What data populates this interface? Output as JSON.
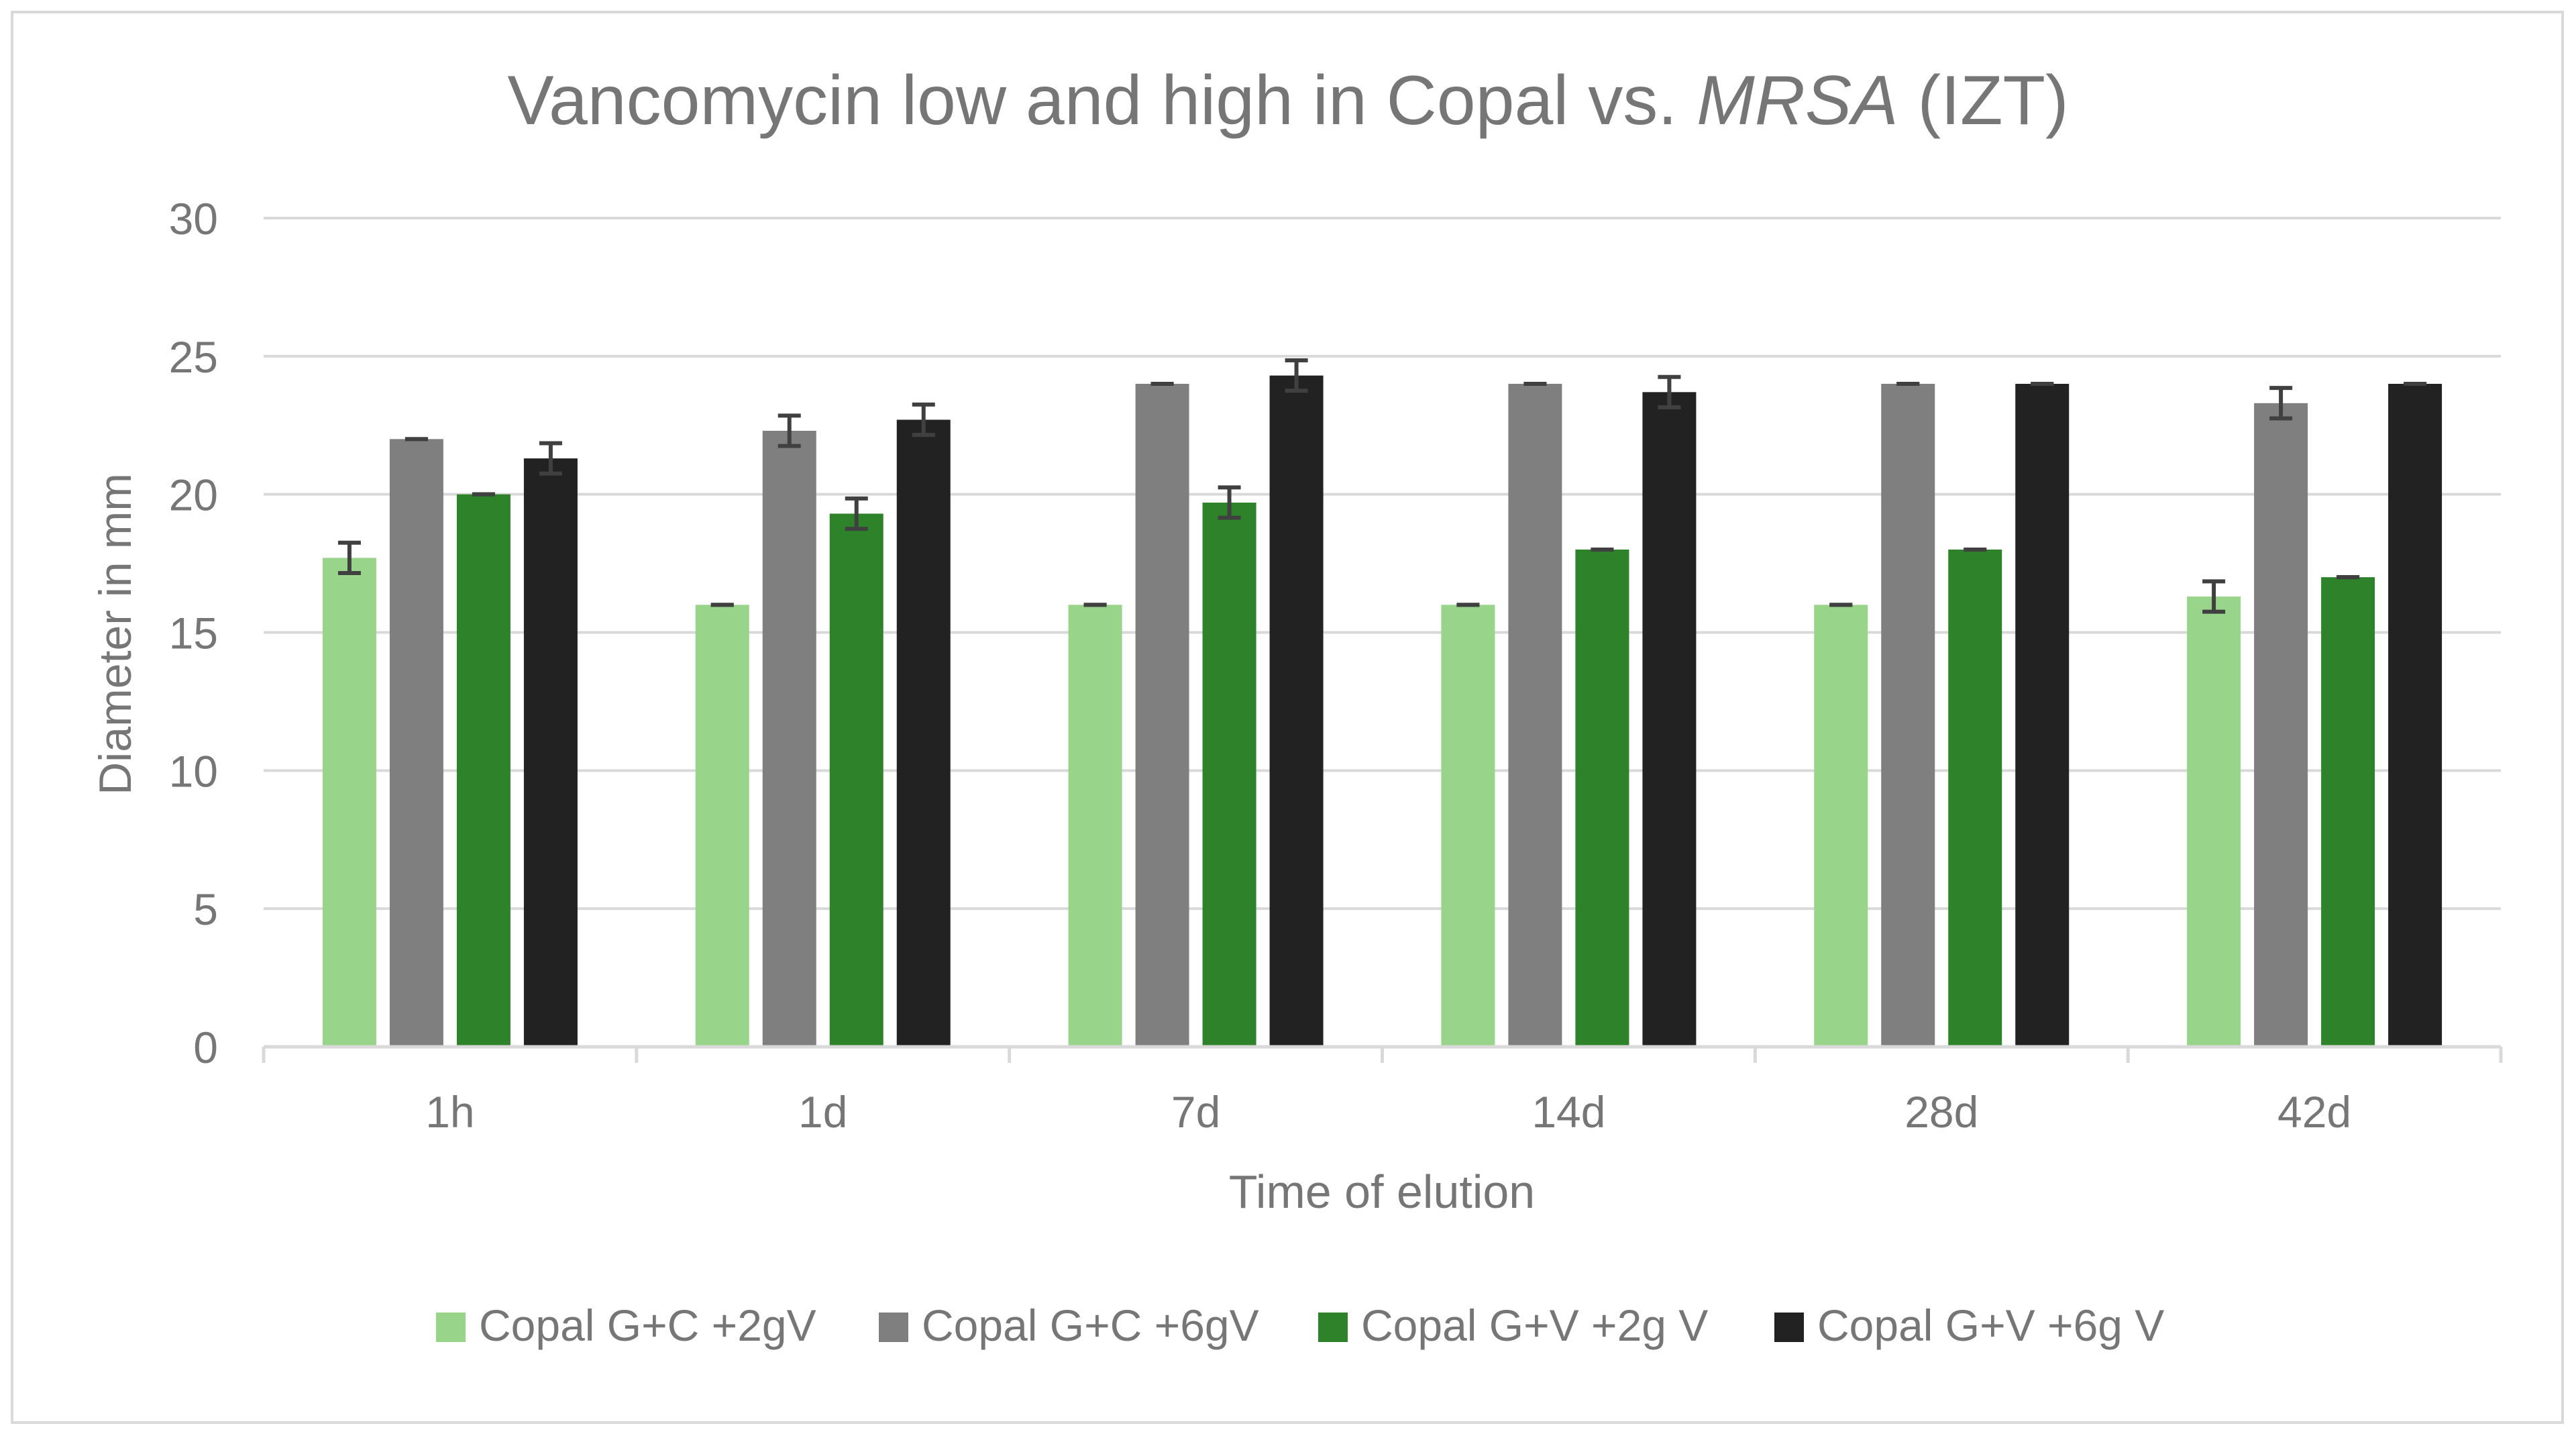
{
  "chart_data": {
    "type": "bar",
    "title_parts": [
      {
        "text": "Vancomycin low and high in Copal vs. ",
        "italic": false
      },
      {
        "text": "MRSA",
        "italic": true
      },
      {
        "text": " (IZT)",
        "italic": false
      }
    ],
    "xlabel": "Time of elution",
    "ylabel": "Diameter in mm",
    "categories": [
      "1h",
      "1d",
      "7d",
      "14d",
      "28d",
      "42d"
    ],
    "ylim": [
      0,
      30
    ],
    "yticks": [
      0,
      5,
      10,
      15,
      20,
      25,
      30
    ],
    "grid": true,
    "legend_position": "bottom",
    "series": [
      {
        "name": "Copal G+C +2gV",
        "color": "#98d48a",
        "values": [
          17.7,
          16,
          16,
          16,
          16,
          16.3
        ],
        "errors": [
          0.55,
          0,
          0,
          0,
          0,
          0.55
        ]
      },
      {
        "name": "Copal G+C +6gV",
        "color": "#7f7f7f",
        "values": [
          22,
          22.3,
          24,
          24,
          24,
          23.3
        ],
        "errors": [
          0,
          0.55,
          0,
          0,
          0,
          0.55
        ]
      },
      {
        "name": "Copal G+V +2g V",
        "color": "#2e8229",
        "values": [
          20,
          19.3,
          19.7,
          18,
          18,
          17
        ],
        "errors": [
          0,
          0.55,
          0.55,
          0,
          0,
          0
        ]
      },
      {
        "name": "Copal G+V +6g V",
        "color": "#222222",
        "values": [
          21.3,
          22.7,
          24.3,
          23.7,
          24,
          24
        ],
        "errors": [
          0.55,
          0.55,
          0.55,
          0.55,
          0,
          0
        ]
      }
    ]
  }
}
